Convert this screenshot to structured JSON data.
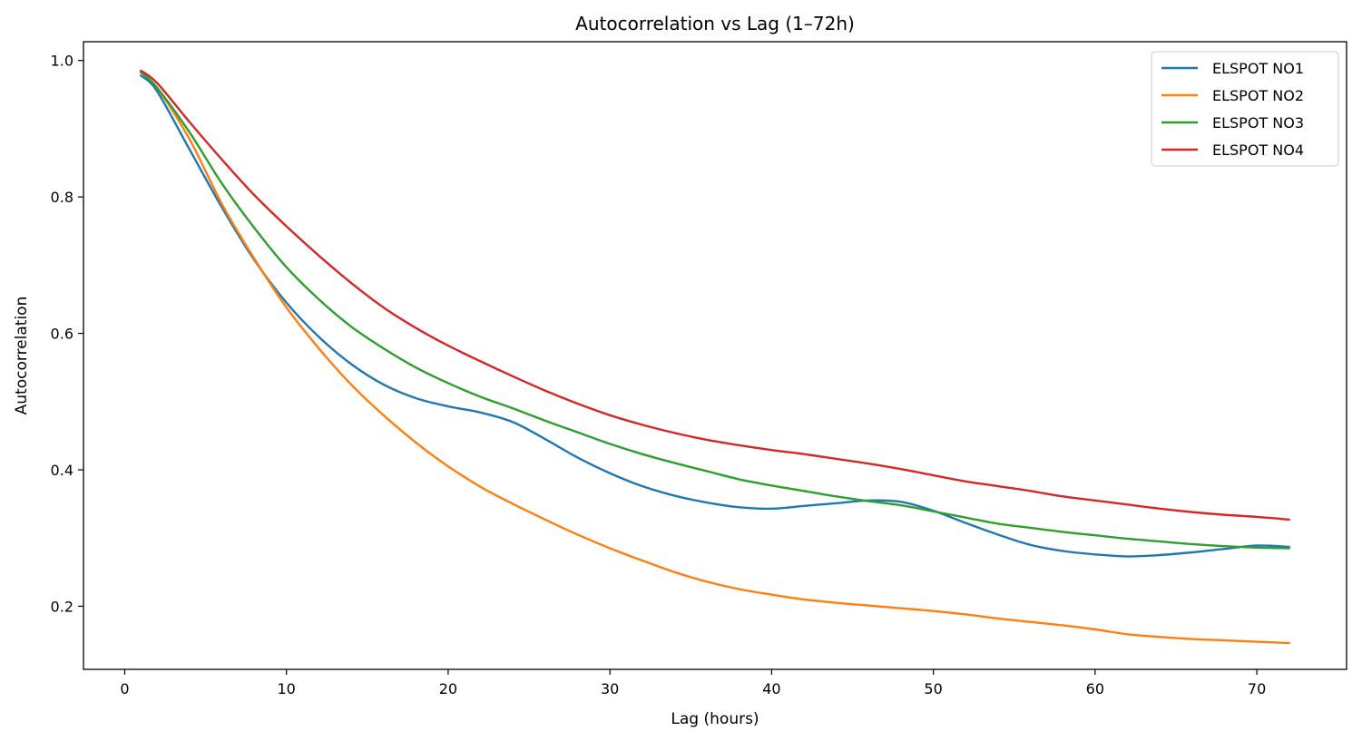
{
  "chart_data": {
    "type": "line",
    "title": "Autocorrelation vs Lag (1–72h)",
    "xlabel": "Lag (hours)",
    "ylabel": "Autocorrelation",
    "xlim": [
      -2.55,
      75.55
    ],
    "ylim": [
      0.1075,
      1.0275
    ],
    "xticks": [
      0,
      10,
      20,
      30,
      40,
      50,
      60,
      70
    ],
    "xtick_labels": [
      "0",
      "10",
      "20",
      "30",
      "40",
      "50",
      "60",
      "70"
    ],
    "yticks": [
      0.2,
      0.4,
      0.6,
      0.8,
      1.0
    ],
    "ytick_labels": [
      "0.2",
      "0.4",
      "0.6",
      "0.8",
      "1.0"
    ],
    "grid": false,
    "legend_position": "top-right",
    "series": [
      {
        "name": "ELSPOT NO1",
        "color": "#1f77b4",
        "x": [
          1,
          2,
          4,
          6,
          8,
          10,
          12,
          14,
          16,
          18,
          20,
          22,
          24,
          26,
          28,
          30,
          32,
          34,
          36,
          38,
          40,
          42,
          44,
          46,
          48,
          50,
          52,
          54,
          56,
          58,
          60,
          62,
          64,
          66,
          68,
          70,
          72
        ],
        "y": [
          0.978,
          0.955,
          0.87,
          0.785,
          0.708,
          0.645,
          0.595,
          0.555,
          0.525,
          0.505,
          0.493,
          0.484,
          0.47,
          0.445,
          0.418,
          0.395,
          0.376,
          0.362,
          0.352,
          0.345,
          0.343,
          0.347,
          0.351,
          0.355,
          0.353,
          0.34,
          0.322,
          0.305,
          0.29,
          0.281,
          0.276,
          0.273,
          0.275,
          0.279,
          0.284,
          0.289,
          0.287
        ]
      },
      {
        "name": "ELSPOT NO2",
        "color": "#ff7f0e",
        "x": [
          1,
          2,
          4,
          6,
          8,
          10,
          12,
          14,
          16,
          18,
          20,
          22,
          24,
          26,
          28,
          30,
          32,
          34,
          36,
          38,
          40,
          42,
          44,
          46,
          48,
          50,
          52,
          54,
          56,
          58,
          60,
          62,
          64,
          66,
          68,
          70,
          72
        ],
        "y": [
          0.983,
          0.96,
          0.885,
          0.79,
          0.71,
          0.638,
          0.578,
          0.525,
          0.48,
          0.44,
          0.405,
          0.375,
          0.35,
          0.327,
          0.305,
          0.285,
          0.267,
          0.25,
          0.236,
          0.225,
          0.217,
          0.21,
          0.205,
          0.201,
          0.197,
          0.193,
          0.188,
          0.182,
          0.177,
          0.172,
          0.166,
          0.159,
          0.155,
          0.152,
          0.15,
          0.148,
          0.146
        ]
      },
      {
        "name": "ELSPOT NO3",
        "color": "#2ca02c",
        "x": [
          1,
          2,
          4,
          6,
          8,
          10,
          12,
          14,
          16,
          18,
          20,
          22,
          24,
          26,
          28,
          30,
          32,
          34,
          36,
          38,
          40,
          42,
          44,
          46,
          48,
          50,
          52,
          54,
          56,
          58,
          60,
          62,
          64,
          66,
          68,
          70,
          72
        ],
        "y": [
          0.983,
          0.96,
          0.895,
          0.82,
          0.755,
          0.697,
          0.65,
          0.61,
          0.578,
          0.55,
          0.527,
          0.507,
          0.49,
          0.472,
          0.455,
          0.438,
          0.423,
          0.41,
          0.398,
          0.386,
          0.377,
          0.369,
          0.361,
          0.354,
          0.348,
          0.339,
          0.33,
          0.321,
          0.315,
          0.309,
          0.304,
          0.299,
          0.295,
          0.291,
          0.288,
          0.286,
          0.285
        ]
      },
      {
        "name": "ELSPOT NO4",
        "color": "#d62728",
        "x": [
          1,
          2,
          4,
          6,
          8,
          10,
          12,
          14,
          16,
          18,
          20,
          22,
          24,
          26,
          28,
          30,
          32,
          34,
          36,
          38,
          40,
          42,
          44,
          46,
          48,
          50,
          52,
          54,
          56,
          58,
          60,
          62,
          64,
          66,
          68,
          70,
          72
        ],
        "y": [
          0.985,
          0.967,
          0.91,
          0.855,
          0.803,
          0.757,
          0.714,
          0.674,
          0.638,
          0.608,
          0.582,
          0.559,
          0.537,
          0.516,
          0.497,
          0.48,
          0.466,
          0.454,
          0.444,
          0.436,
          0.429,
          0.423,
          0.416,
          0.409,
          0.401,
          0.392,
          0.383,
          0.376,
          0.369,
          0.361,
          0.355,
          0.349,
          0.343,
          0.338,
          0.334,
          0.331,
          0.327
        ]
      }
    ]
  }
}
